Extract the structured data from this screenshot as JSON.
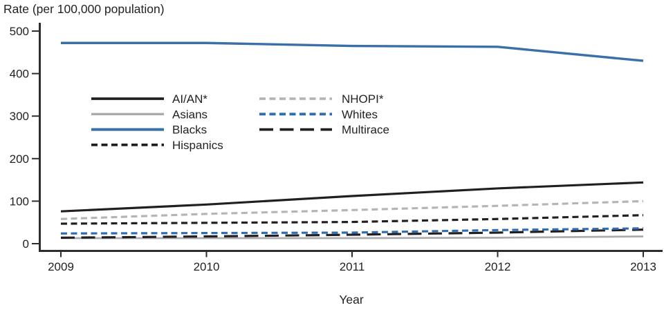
{
  "chart_data": {
    "type": "line",
    "title": "",
    "ylabel": "Rate (per 100,000 population)",
    "xlabel": "Year",
    "x": [
      2009,
      2010,
      2011,
      2012,
      2013
    ],
    "ylim": [
      0,
      500
    ],
    "yticks": [
      0,
      100,
      200,
      300,
      400,
      500
    ],
    "grid": false,
    "legend_position": "inside-upper-left-two-columns",
    "series": [
      {
        "name": "AI/AN*",
        "style": "solid",
        "color": "#231f20",
        "width": 3.2,
        "values": [
          76,
          92,
          112,
          130,
          144
        ]
      },
      {
        "name": "Asians",
        "style": "solid",
        "color": "#a9abae",
        "width": 2.8,
        "values": [
          13,
          13,
          13,
          14,
          17
        ]
      },
      {
        "name": "Blacks",
        "style": "solid",
        "color": "#3a6fa8",
        "width": 3.4,
        "values": [
          472,
          472,
          465,
          463,
          430
        ]
      },
      {
        "name": "Hispanics",
        "style": "dashed",
        "color": "#231f20",
        "width": 3.2,
        "values": [
          47,
          49,
          51,
          58,
          67
        ]
      },
      {
        "name": "NHOPI*",
        "style": "dashed",
        "color": "#b3b5b8",
        "width": 3.2,
        "values": [
          58,
          70,
          79,
          89,
          100
        ]
      },
      {
        "name": "Whites",
        "style": "dashed",
        "color": "#2e6db4",
        "width": 3.2,
        "values": [
          24,
          25,
          26,
          32,
          36
        ]
      },
      {
        "name": "Multirace",
        "style": "long-dash",
        "color": "#231f20",
        "width": 3.2,
        "values": [
          14,
          17,
          21,
          26,
          33
        ]
      }
    ],
    "legend_columns": [
      [
        "AI/AN*",
        "Asians",
        "Blacks",
        "Hispanics"
      ],
      [
        "NHOPI*",
        "Whites",
        "Multirace"
      ]
    ]
  },
  "colors": {
    "axis": "#2d2c2e",
    "text": "#231f20",
    "background": "#ffffff"
  }
}
